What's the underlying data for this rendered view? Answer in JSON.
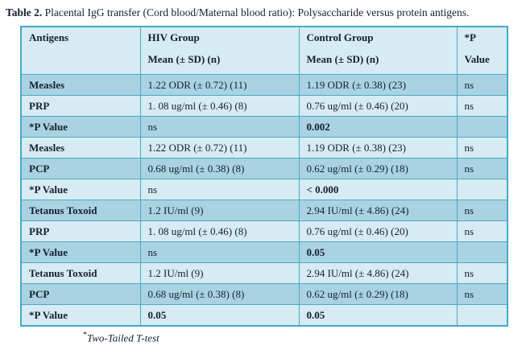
{
  "caption": {
    "prefix": "Table 2.",
    "text": " Placental IgG transfer (Cord blood/Maternal blood ratio): Polysaccharide versus protein antigens."
  },
  "table": {
    "header": {
      "antigens": "Antigens",
      "hiv_line1": "HIV Group",
      "hiv_line2": "Mean (± SD) (n)",
      "control_line1": "Control Group",
      "control_line2": "Mean (± SD) (n)",
      "p_line1": "*P",
      "p_line2": "Value"
    },
    "rows": [
      {
        "antigen": "Measles",
        "hiv": "1.22 ODR (± 0.72) (11)",
        "control": "1.19 ODR (± 0.38) (23)",
        "p": "ns"
      },
      {
        "antigen": "PRP",
        "hiv": "1. 08 ug/ml (± 0.46) (8)",
        "control": "0.76 ug/ml (± 0.46) (20)",
        "p": "ns"
      },
      {
        "antigen": "*P Value",
        "hiv": "ns",
        "control": "0.002",
        "p": ""
      },
      {
        "antigen": "Measles",
        "hiv": "1.22 ODR (± 0.72) (11)",
        "control": "1.19 ODR (± 0.38) (23)",
        "p": "ns"
      },
      {
        "antigen": "PCP",
        "hiv": "0.68 ug/ml (± 0.38) (8)",
        "control": "0.62 ug/ml (± 0.29) (18)",
        "p": "ns"
      },
      {
        "antigen": "*P Value",
        "hiv": "ns",
        "control": "< 0.000",
        "p": ""
      },
      {
        "antigen": "Tetanus Toxoid",
        "hiv": "1.2 IU/ml (9)",
        "control": "2.94 IU/ml (± 4.86) (24)",
        "p": "ns"
      },
      {
        "antigen": "PRP",
        "hiv": "1. 08 ug/ml (± 0.46) (8)",
        "control": "0.76 ug/ml (± 0.46) (20)",
        "p": "ns"
      },
      {
        "antigen": "*P Value",
        "hiv": "ns",
        "control": "0.05",
        "p": ""
      },
      {
        "antigen": "Tetanus Toxoid",
        "hiv": "1.2 IU/ml (9)",
        "control": "2.94 IU/ml (± 4.86) (24)",
        "p": "ns"
      },
      {
        "antigen": "PCP",
        "hiv": "0.68 ug/ml (± 0.38) (8)",
        "control": "0.62 ug/ml (± 0.29) (18)",
        "p": "ns"
      },
      {
        "antigen": "*P Value",
        "hiv": "0.05",
        "control": "0.05",
        "p": ""
      }
    ]
  },
  "footnote": {
    "marker": "*",
    "text": "Two-Tailed T-test"
  },
  "colors": {
    "border": "#46aac5",
    "row_dark": "#a9d3e3",
    "row_light": "#d7ebf2",
    "text": "#15202c"
  }
}
